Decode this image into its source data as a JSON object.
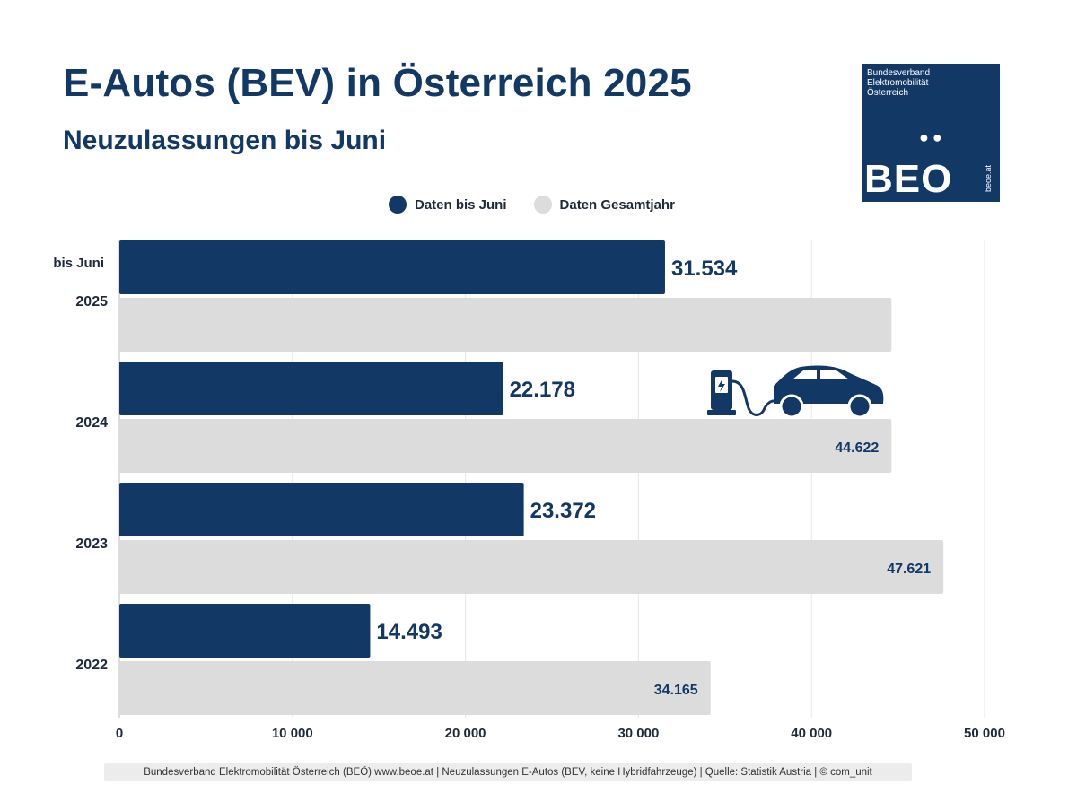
{
  "title": "E-Autos (BEV) in Österreich 2025",
  "subtitle": "Neuzulassungen bis Juni",
  "logo": {
    "line1": "Bundesverband",
    "line2": "Elektromobilität",
    "line3": "Österreich",
    "name": "BEO",
    "url": "beoe.at"
  },
  "footer": "Bundesverband Elektromobilität Österreich (BEÖ) www.beoe.at | Neuzulassungen E-Autos (BEV, keine Hybridfahrzeuge) | Quelle: Statistik Austria | © com_unit",
  "colors": {
    "dark": "#123866",
    "light": "#dcdcdc"
  },
  "chart_data": {
    "type": "bar",
    "orientation": "horizontal",
    "categories": [
      "2025",
      "2024",
      "2023",
      "2022"
    ],
    "category_note": "bis Juni",
    "series": [
      {
        "name": "Daten bis Juni",
        "values": [
          31534,
          22178,
          23372,
          14493
        ],
        "labels": [
          "31.534",
          "22.178",
          "23.372",
          "14.493"
        ]
      },
      {
        "name": "Daten Gesamtjahr",
        "values": [
          44622,
          44622,
          47621,
          34165
        ],
        "labels": [
          "",
          "44.622",
          "47.621",
          "34.165"
        ]
      }
    ],
    "xlim": [
      0,
      50000
    ],
    "xticks": [
      0,
      10000,
      20000,
      30000,
      40000,
      50000
    ],
    "xtick_labels": [
      "0",
      "10 000",
      "20 000",
      "30 000",
      "40 000",
      "50 000"
    ],
    "grid": true,
    "legend": "top"
  }
}
